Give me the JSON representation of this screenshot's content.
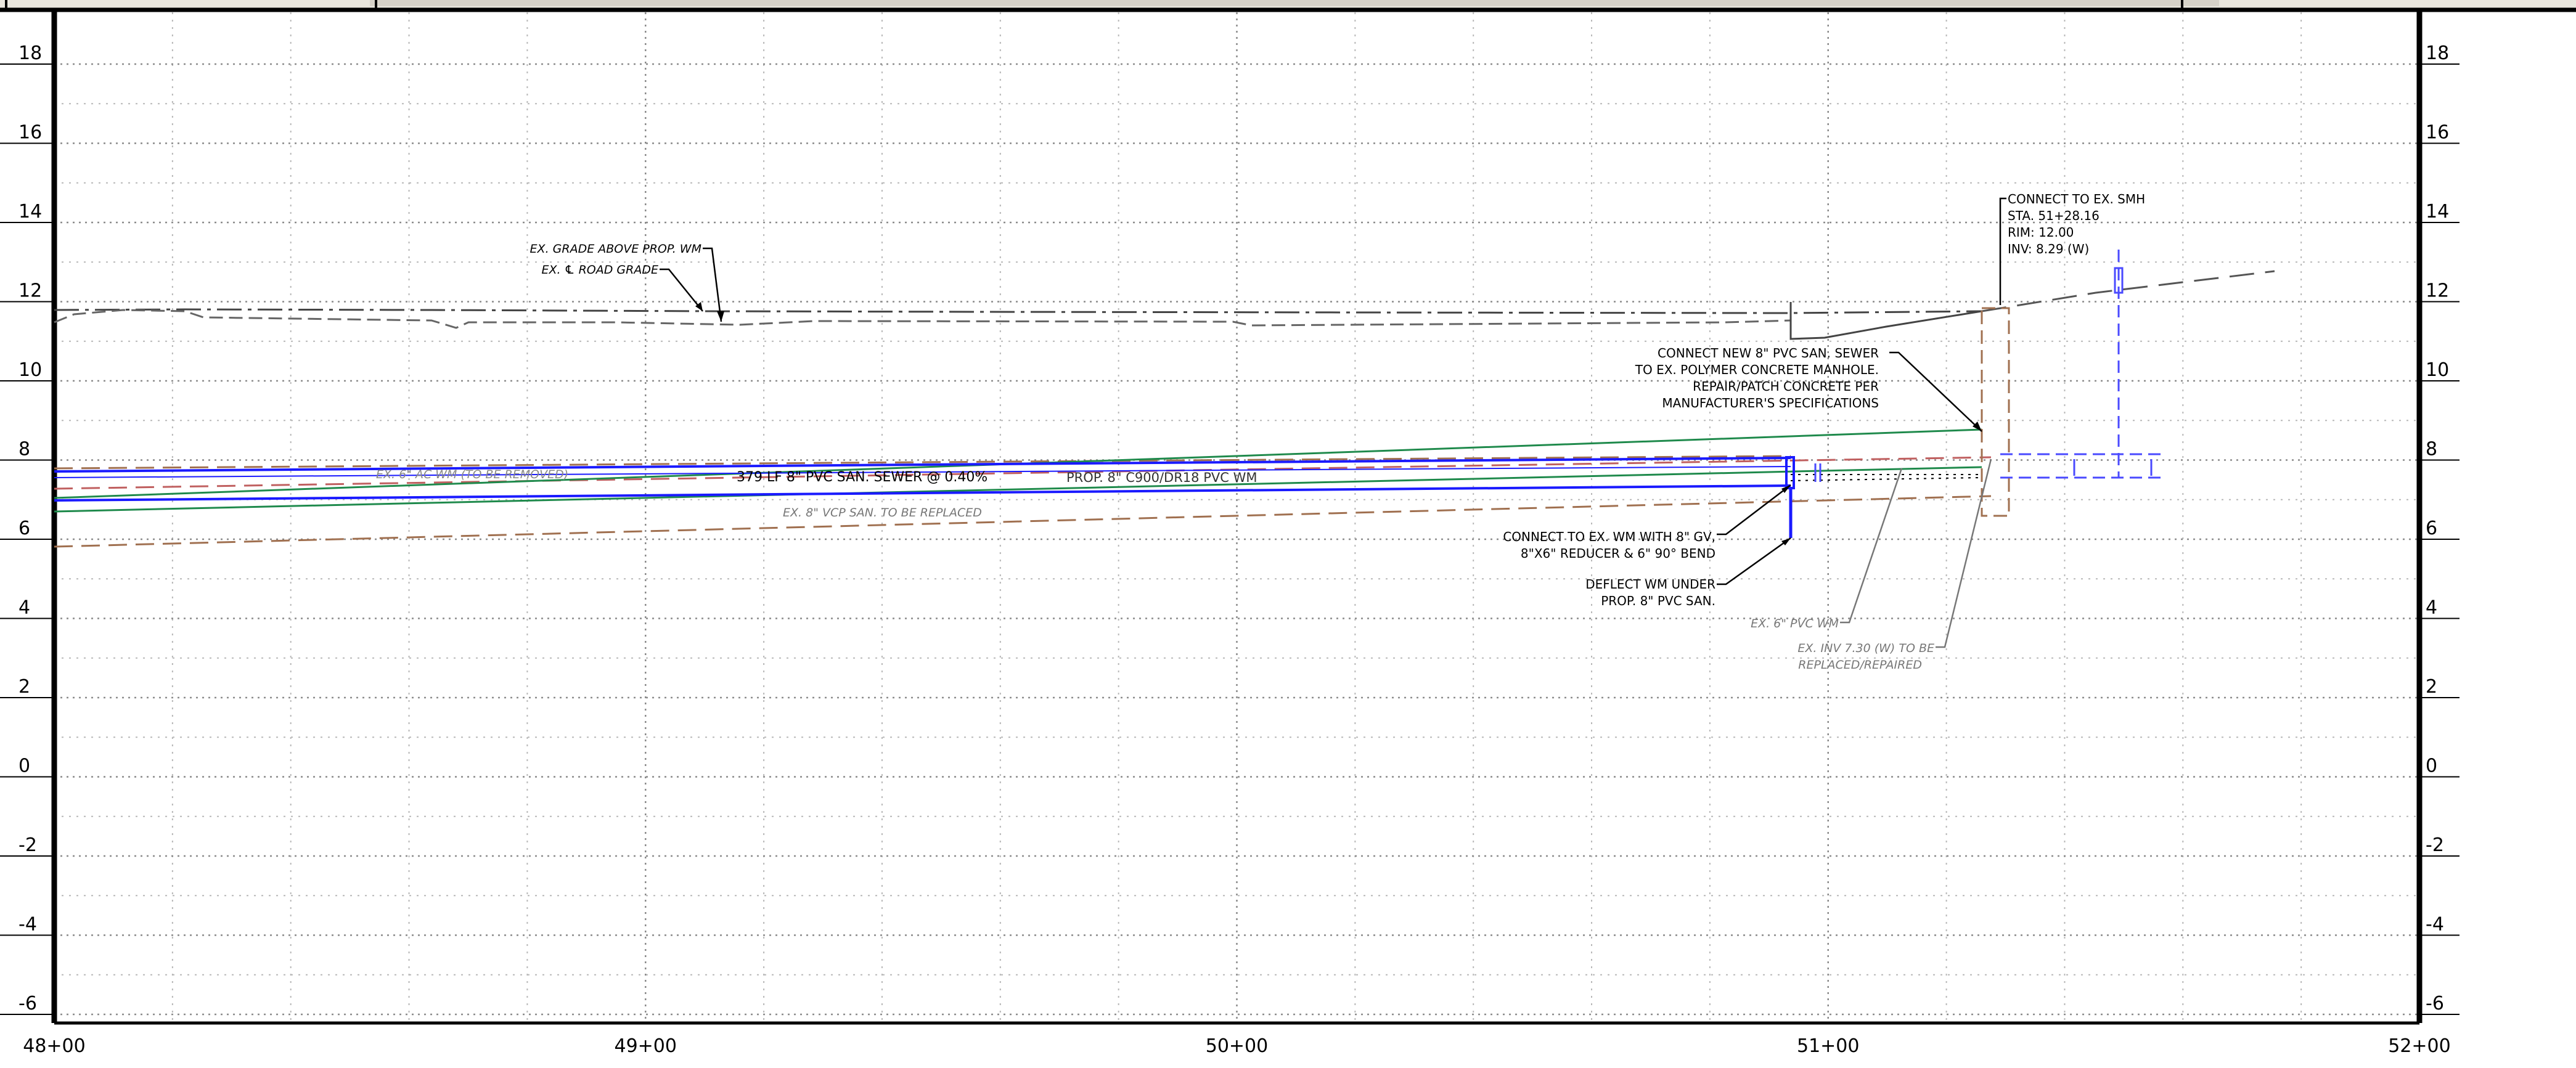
{
  "profile": {
    "elevation_ticks": [
      "18",
      "16",
      "14",
      "12",
      "10",
      "8",
      "6",
      "4",
      "2",
      "0",
      "-2",
      "-4",
      "-6"
    ],
    "station_ticks": [
      "48+00",
      "49+00",
      "50+00",
      "51+00",
      "52+00"
    ],
    "elevation_range": [
      -6,
      18
    ],
    "station_range": [
      4800,
      5200
    ]
  },
  "colors": {
    "water_main": "#1a1aff",
    "sewer": "#1f8a4c",
    "existing_sewer": "#a07050",
    "existing_wm": "#c06060",
    "grade": "#555555",
    "leader": "#000000"
  },
  "labels": {
    "ex_grade_above_wm": "EX. GRADE ABOVE PROP. WM",
    "ex_road_grade": "EX. ℄ ROAD GRADE",
    "ex_wm_removed": "EX. 6\" AC WM (TO BE REMOVED)",
    "san_sewer_run": "379 LF 8\" PVC SAN. SEWER @ 0.40%",
    "prop_wm": "PROP. 8\" C900/DR18 PVC WM",
    "ex_vcp_replaced": "EX. 8\" VCP SAN. TO BE REPLACED",
    "connect_wm_1": "CONNECT TO EX. WM WITH 8\" GV,",
    "connect_wm_2": "8\"X6\" REDUCER & 6\" 90° BEND",
    "deflect_wm_1": "DEFLECT WM UNDER",
    "deflect_wm_2": "PROP. 8\" PVC SAN.",
    "ex_6_pvc_wm": "EX. 6\" PVC WM",
    "ex_inv_1": "EX. INV 7.30 (W) TO BE",
    "ex_inv_2": "REPLACED/REPAIRED",
    "connect_new_1": "CONNECT NEW 8\" PVC SAN. SEWER",
    "connect_new_2": "TO EX. POLYMER CONCRETE MANHOLE.",
    "connect_new_3": "REPAIR/PATCH CONCRETE PER",
    "connect_new_4": "MANUFACTURER'S SPECIFICATIONS",
    "smh_1": "CONNECT TO EX. SMH",
    "smh_2": "STA. 51+28.16",
    "smh_3": "RIM: 12.00",
    "smh_4": "INV: 8.29 (W)"
  }
}
